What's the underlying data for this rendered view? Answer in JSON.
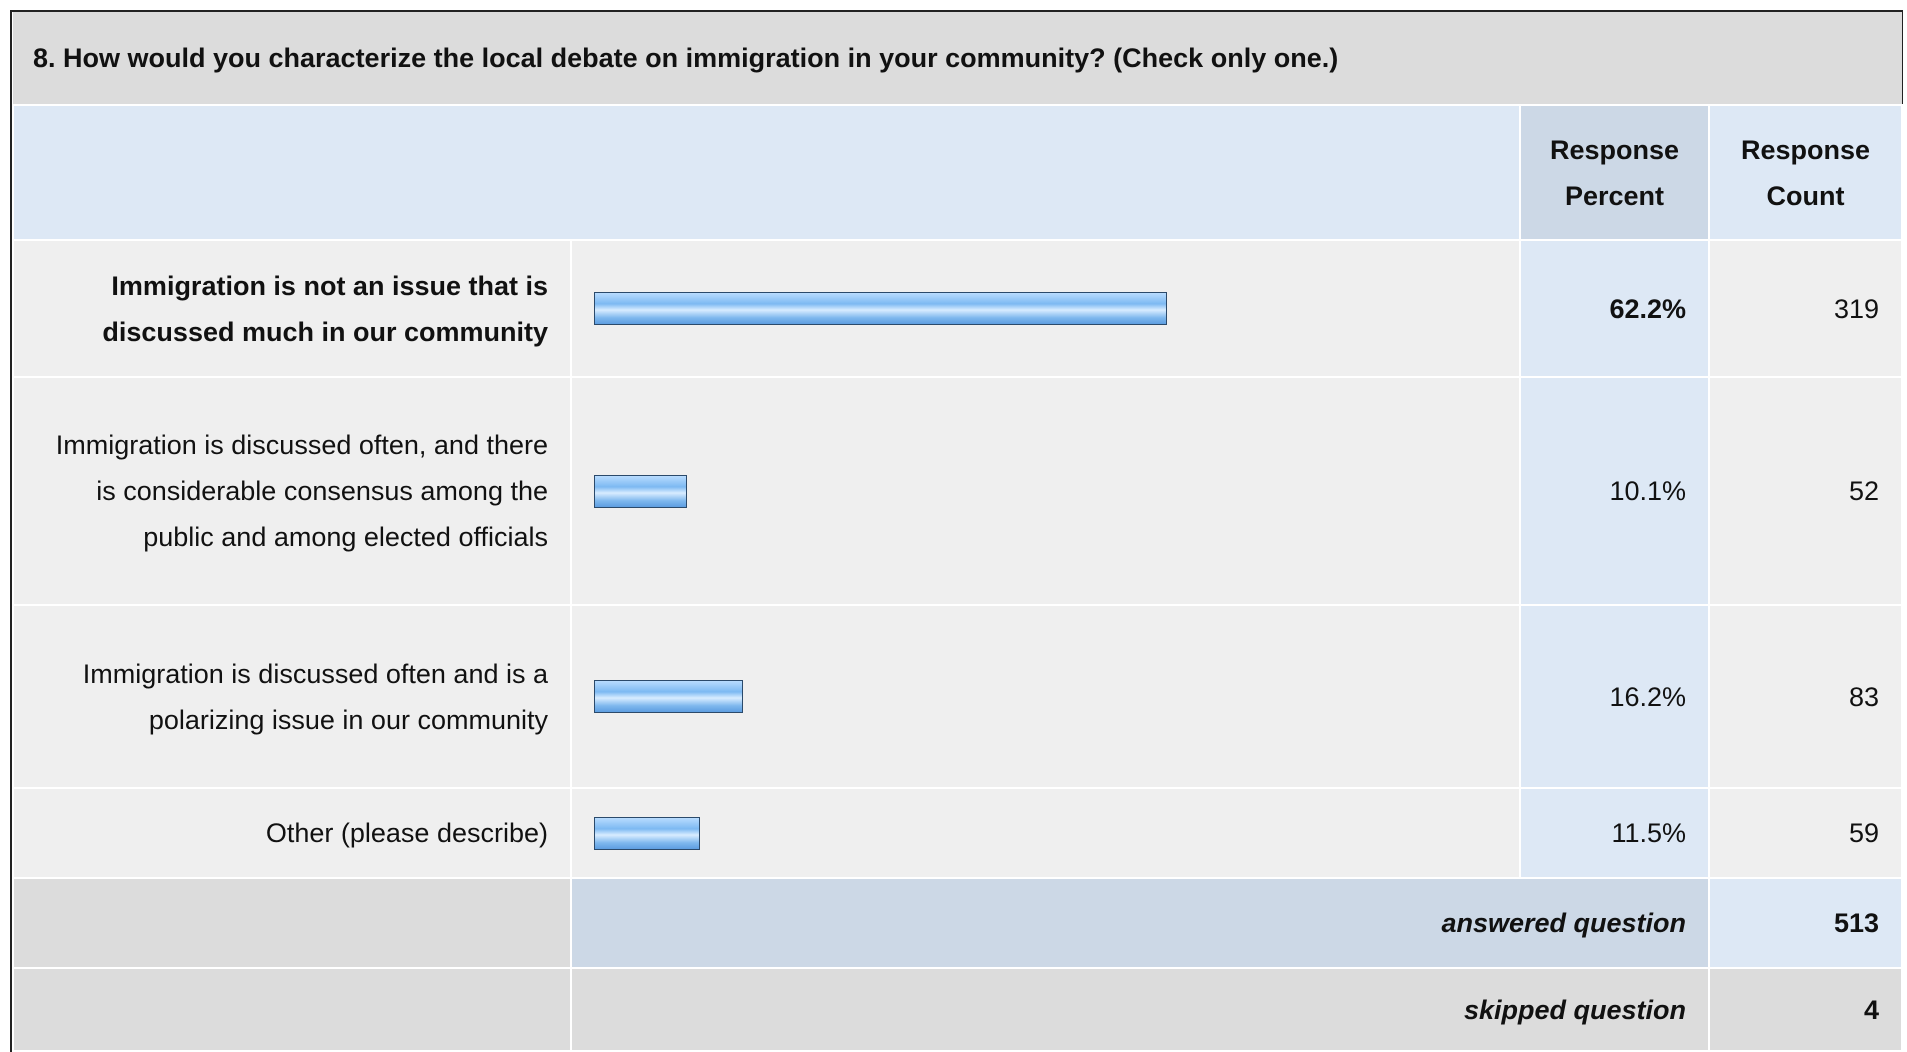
{
  "title": "8. How would you characterize the local debate on immigration in your community? (Check only one.)",
  "table": {
    "headers": [
      "Response Percent",
      "Response Count"
    ],
    "xlim": [
      0,
      100
    ],
    "rows": [
      {
        "label": "Immigration is not an issue that is discussed much in our community",
        "percent": 62.2,
        "percent_label": "62.2%",
        "count": 319
      },
      {
        "label": "Immigration is discussed often, and there is considerable consensus among the public and among elected officials",
        "percent": 10.1,
        "percent_label": "10.1%",
        "count": 52
      },
      {
        "label": "Immigration is discussed often and is a polarizing issue in our community",
        "percent": 16.2,
        "percent_label": "16.2%",
        "count": 83
      },
      {
        "label": "Other (please describe)",
        "percent": 11.5,
        "percent_label": "11.5%",
        "count": 59
      }
    ],
    "footer": [
      {
        "label": "answered question",
        "value": 513
      },
      {
        "label": "skipped question",
        "value": 4
      }
    ]
  }
}
